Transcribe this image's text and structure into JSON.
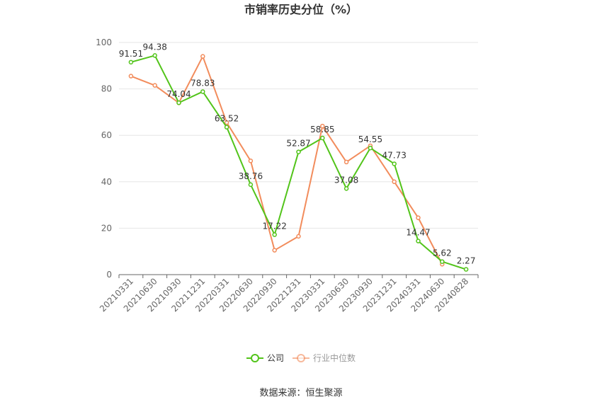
{
  "chart_data": {
    "type": "line",
    "title": "市销率历史分位（%）",
    "categories": [
      "20210331",
      "20210630",
      "20210930",
      "20211231",
      "20220331",
      "20220630",
      "20220930",
      "20221231",
      "20230331",
      "20230630",
      "20230930",
      "20231231",
      "20240331",
      "20240630",
      "20240828"
    ],
    "series": [
      {
        "name": "公司",
        "color": "#52c41a",
        "values": [
          91.51,
          94.38,
          74.04,
          78.83,
          63.52,
          38.76,
          17.22,
          52.87,
          58.85,
          37.08,
          54.55,
          47.73,
          14.47,
          5.62,
          2.27
        ],
        "labels": [
          "91.51",
          "94.38",
          "74.04",
          "78.83",
          "63.52",
          "38.76",
          "17.22",
          "52.87",
          "58.85",
          "37.08",
          "54.55",
          "47.73",
          "14.47",
          "5.62",
          "2.27"
        ]
      },
      {
        "name": "行业中位数",
        "color": "#f28c5c",
        "values": [
          85.5,
          81.5,
          74.0,
          94.0,
          65.5,
          49.0,
          10.5,
          16.5,
          64.0,
          48.5,
          55.5,
          40.0,
          24.5,
          4.5,
          null
        ]
      }
    ],
    "yticks": [
      "0",
      "20",
      "40",
      "60",
      "80",
      "100"
    ],
    "ylim": [
      0,
      100
    ],
    "grid": true,
    "legend_position": "bottom-center",
    "source": "数据来源：恒生聚源"
  }
}
